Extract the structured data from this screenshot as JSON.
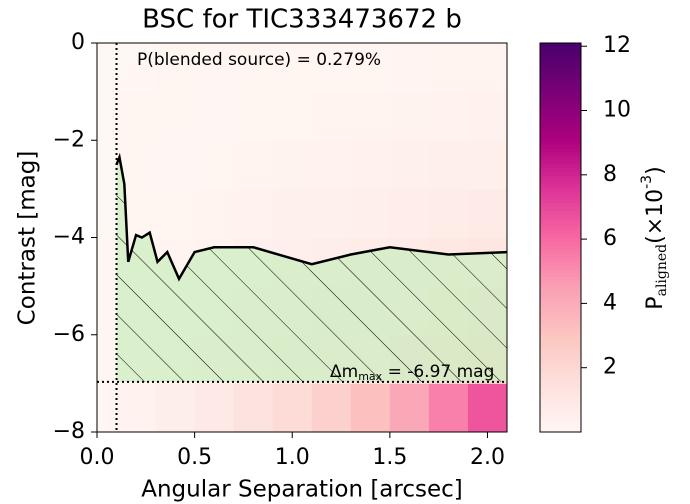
{
  "chart_data": {
    "type": "contrast_curve",
    "title": "BSC for TIC333473672 b",
    "xlabel": "Angular Separation [arcsec]",
    "ylabel": "Contrast [mag]",
    "annotation": "P(blended source) = 0.279%",
    "dmax_label": {
      "main": "Δm",
      "sub": "max",
      "rest": " =  -6.97 mag"
    },
    "dmax": -6.97,
    "sep_min": 0.1,
    "xlim": [
      0,
      2.1
    ],
    "ylim": [
      -8,
      0
    ],
    "xticks": [
      {
        "value": 0,
        "label": "0.0"
      },
      0.5,
      {
        "value": 1,
        "label": "1.0"
      },
      1.5,
      {
        "value": 2,
        "label": "2.0"
      }
    ],
    "yticks": [
      {
        "value": -8,
        "label": "−8"
      },
      {
        "value": -6,
        "label": "−6"
      },
      {
        "value": -4,
        "label": "−4"
      },
      {
        "value": -2,
        "label": "−2"
      },
      {
        "value": 0,
        "label": "0"
      }
    ],
    "curve": {
      "color": "#000000",
      "x": [
        0.1,
        0.115,
        0.14,
        0.16,
        0.2,
        0.23,
        0.27,
        0.31,
        0.36,
        0.42,
        0.5,
        0.6,
        0.8,
        1.1,
        1.3,
        1.5,
        1.8,
        2.1
      ],
      "y": [
        -2.5,
        -2.35,
        -2.9,
        -4.5,
        -3.95,
        -4.0,
        -3.9,
        -4.5,
        -4.3,
        -4.85,
        -4.3,
        -4.2,
        -4.2,
        -4.55,
        -4.35,
        -4.2,
        -4.35,
        -4.3
      ]
    },
    "fill_color": "#cdeec0",
    "heatmap": {
      "xbins": [
        0,
        0.1,
        0.3,
        0.5,
        0.7,
        0.9,
        1.1,
        1.3,
        1.5,
        1.7,
        1.9,
        2.1
      ],
      "ybins": [
        -8,
        -7,
        -6,
        -5,
        -4,
        -3,
        -2,
        -1,
        0
      ],
      "values": [
        [
          0.1,
          0.3,
          0.6,
          0.9,
          1.3,
          1.8,
          2.4,
          3.2,
          4.2,
          5.4,
          6.6
        ],
        [
          0.05,
          0.15,
          0.3,
          0.45,
          0.6,
          0.8,
          1.0,
          1.2,
          1.5,
          1.8,
          2.1
        ],
        [
          0.05,
          0.12,
          0.25,
          0.35,
          0.5,
          0.6,
          0.75,
          0.9,
          1.1,
          1.3,
          1.5
        ],
        [
          0.05,
          0.1,
          0.2,
          0.3,
          0.4,
          0.5,
          0.6,
          0.7,
          0.85,
          1.0,
          1.1
        ],
        [
          0.03,
          0.08,
          0.15,
          0.22,
          0.3,
          0.38,
          0.45,
          0.55,
          0.65,
          0.75,
          0.85
        ],
        [
          0.02,
          0.06,
          0.1,
          0.15,
          0.2,
          0.25,
          0.3,
          0.36,
          0.42,
          0.5,
          0.55
        ],
        [
          0.02,
          0.04,
          0.07,
          0.1,
          0.13,
          0.16,
          0.2,
          0.23,
          0.27,
          0.3,
          0.34
        ],
        [
          0.01,
          0.03,
          0.05,
          0.07,
          0.09,
          0.11,
          0.13,
          0.15,
          0.17,
          0.19,
          0.21
        ]
      ]
    },
    "colorbar": {
      "clim": [
        0,
        12.1
      ],
      "ticks": [
        2,
        4,
        6,
        8,
        10,
        12
      ],
      "label": {
        "main": "P",
        "sub": "aligned",
        "unit": "(×10",
        "sup": "-3",
        "close": ")"
      },
      "colors": [
        "#fff7f3",
        "#fde0dd",
        "#fcc5c0",
        "#fa9fb5",
        "#f768a1",
        "#dd3497",
        "#ae017e",
        "#7a0177",
        "#49006a"
      ]
    }
  }
}
